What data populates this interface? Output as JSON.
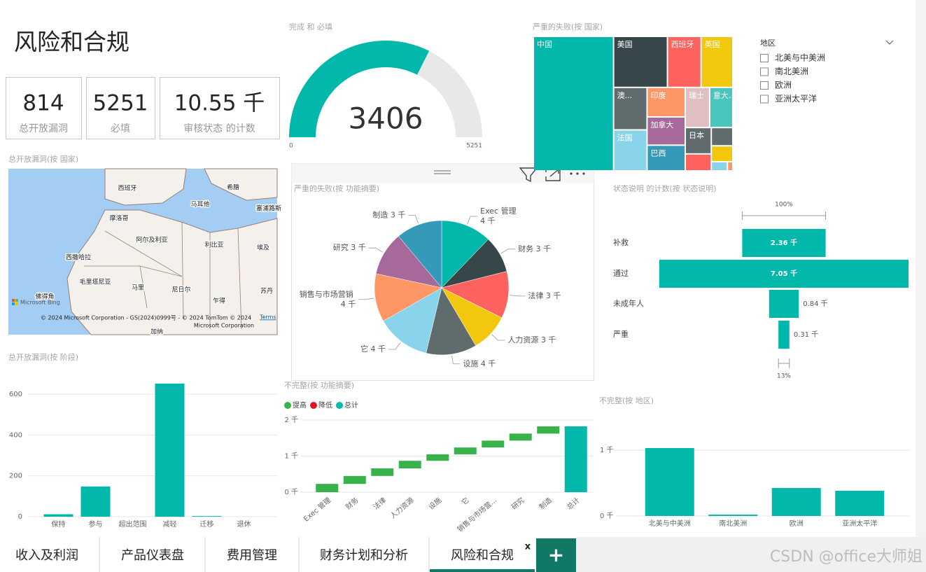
{
  "page_title": "风险和合规",
  "kpis": [
    {
      "value": 814,
      "label": "总开放漏洞"
    },
    {
      "value": 5251,
      "label": "必填"
    },
    {
      "value": "10.55 千",
      "label": "审核状态 的计数"
    }
  ],
  "gauge": {
    "type": "gauge",
    "title": "完成 和 必填",
    "value": 3406,
    "min": 0,
    "max": 5251,
    "color": "#01b8aa",
    "track_color": "#e8e8e8"
  },
  "treemap": {
    "type": "treemap",
    "title": "严重的失败(按 国家)",
    "categories": [
      "中国",
      "美国",
      "西班牙",
      "英国",
      "澳...",
      "法国",
      "印度",
      "加拿大",
      "巴西",
      "瑞士",
      "意大...",
      "日本",
      null,
      null,
      null,
      null,
      null
    ],
    "values": [
      220,
      56,
      35,
      33,
      29,
      28,
      23,
      22,
      20,
      20,
      19,
      14,
      9,
      8,
      7,
      3,
      1
    ],
    "colors": [
      "#01b8aa",
      "#374649",
      "#fd625e",
      "#f2c80f",
      "#5f6b6d",
      "#8ad4eb",
      "#fe9666",
      "#a66999",
      "#3599b8",
      "#dfbfbf",
      "#4ac5bb",
      "#5f6b6d",
      "#fd625e",
      "#5f6b6d",
      "#f2c80f",
      "#8ad4eb",
      "#fe9666"
    ]
  },
  "slicer": {
    "title": "地区",
    "items": [
      "北美与中美洲",
      "南北美洲",
      "欧洲",
      "亚洲太平洋"
    ]
  },
  "map": {
    "title": "总开放漏洞(按 国家)",
    "labels": [
      "西班牙",
      "希腊",
      "马耳他",
      "塞浦路斯",
      "摩洛哥",
      "阿尔及利亚",
      "利比亚",
      "埃及",
      "西撒哈拉",
      "毛里塔尼亚",
      "马里",
      "尼日尔",
      "乍得",
      "苏丹",
      "佛得角",
      "加纳"
    ],
    "provider": "Microsoft Bing",
    "attribution": [
      "© 2024 Microsoft Corporation - GS(2024)0999号 - © 2024 TomTom © 2024",
      "Microsoft Corporation"
    ],
    "terms": "Terms"
  },
  "pie": {
    "type": "pie",
    "title": "严重的失败(按 功能摘要)",
    "categories": [
      "Exec 管理",
      "财务",
      "法律",
      "人力资源",
      "设施",
      "它",
      "销售与市场营销",
      "研究",
      "制造"
    ],
    "values": [
      3730,
      2710,
      3450,
      2800,
      3730,
      3980,
      3550,
      3220,
      3390
    ],
    "value_labels": [
      "4 千",
      "3 千",
      "3 千",
      "3 千",
      "4 千",
      "4 千",
      "4 千",
      "3 千",
      "3 千"
    ],
    "colors": [
      "#01b8aa",
      "#374649",
      "#fd625e",
      "#f2c80f",
      "#5f6b6d",
      "#8ad4eb",
      "#fe9666",
      "#a66999",
      "#3599b8"
    ]
  },
  "status_chart": {
    "type": "funnel",
    "title": "状态说明 的计数(按 状态说明)",
    "categories": [
      "补救",
      "通过",
      "未成年人",
      "严重"
    ],
    "values": [
      2360,
      7050,
      840,
      310
    ],
    "value_labels": [
      "2.36 千",
      "7.05 千",
      "0.84 千",
      "0.31 千"
    ],
    "top_label": "100%",
    "bottom_label": "13%",
    "color": "#01b8aa"
  },
  "stage_chart": {
    "type": "bar",
    "title": "总开放漏洞(按 阶段)",
    "categories": [
      "保持",
      "参与",
      "超出范围",
      "减轻",
      "迁移",
      "退休"
    ],
    "values": [
      12,
      148,
      0,
      652,
      3,
      0
    ],
    "color": "#01b8aa",
    "ylim": [
      0,
      660
    ],
    "yticks": [
      0,
      200,
      400,
      600
    ],
    "grid": true
  },
  "waterfall": {
    "type": "waterfall",
    "title": "不完整(按 功能摘要)",
    "legend": [
      {
        "name": "提高",
        "color": "#37b34a"
      },
      {
        "name": "降低",
        "color": "#e81123"
      },
      {
        "name": "总计",
        "color": "#01b8aa"
      }
    ],
    "categories": [
      "Exec 管理",
      "财务",
      "法律",
      "人力资源",
      "设施",
      "它",
      "销售与市场营...",
      "研究",
      "制造",
      "总计"
    ],
    "values": [
      230,
      220,
      210,
      210,
      180,
      190,
      190,
      195,
      200,
      1825
    ],
    "ylim": [
      0,
      2100
    ],
    "yticks": [
      {
        "value": 0,
        "label": "0 千"
      },
      {
        "value": 1000,
        "label": "1 千"
      },
      {
        "value": 2000,
        "label": "2 千"
      }
    ],
    "grid": true
  },
  "region_chart": {
    "type": "bar",
    "title": "不完整(按 地区)",
    "categories": [
      "北美与中美洲",
      "南北美洲",
      "欧洲",
      "亚洲太平洋"
    ],
    "values": [
      1032,
      21,
      425,
      383
    ],
    "color": "#01b8aa",
    "ylim": [
      0,
      1450
    ],
    "yticks": [
      {
        "value": 0,
        "label": "0 千"
      },
      {
        "value": 1000,
        "label": "1 千"
      }
    ],
    "grid": true
  },
  "tabs": {
    "items": [
      "收入及利润",
      "产品仪表盘",
      "费用管理",
      "财务计划和分析",
      "风险和合规"
    ],
    "active": 4,
    "close": "x",
    "add": "+"
  },
  "watermark": "CSDN @office大师姐"
}
